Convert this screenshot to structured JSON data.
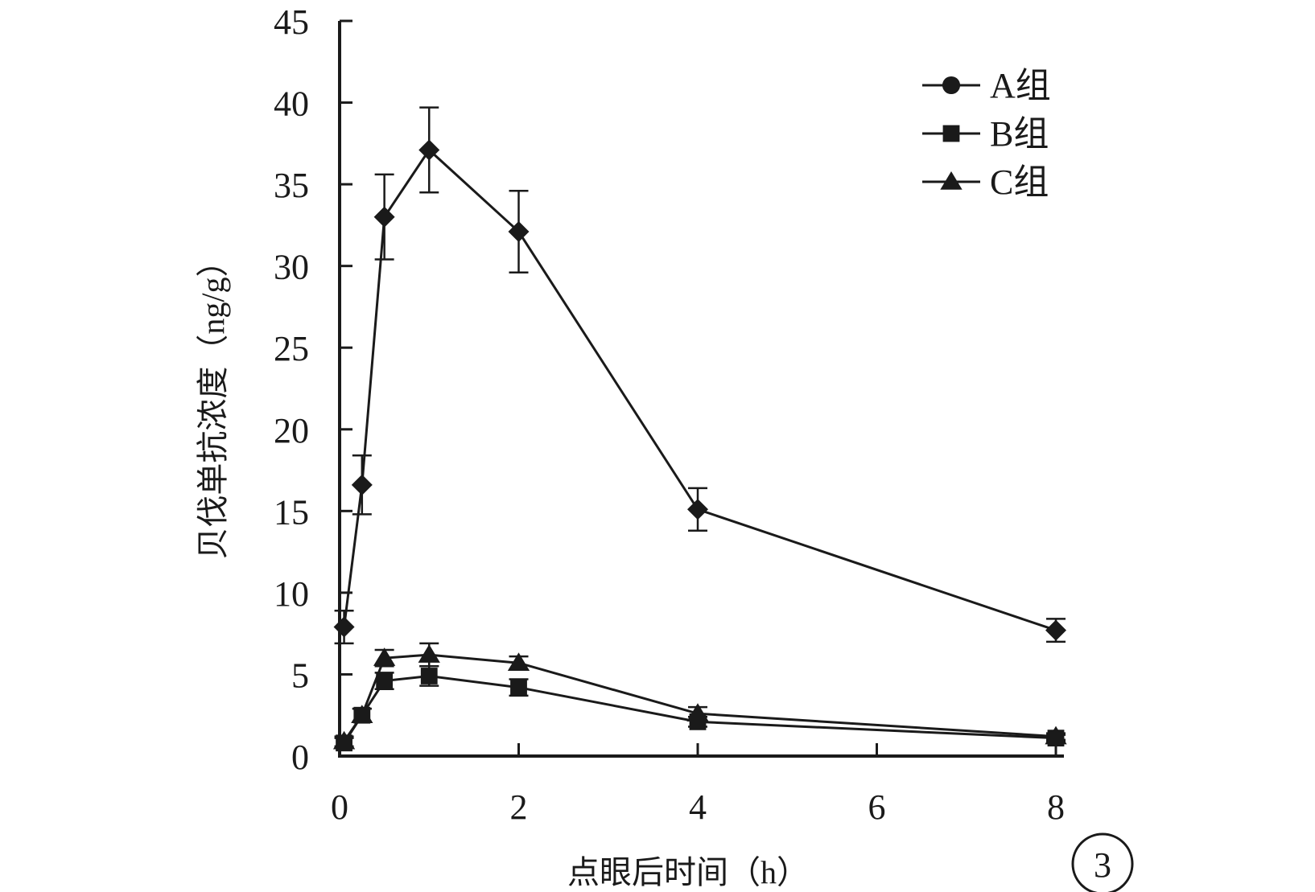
{
  "panel_label": "3",
  "chart_data": {
    "type": "line",
    "xlabel": "点眼后时间（h）",
    "ylabel": "贝伐单抗浓度（ng/g）",
    "x_ticks": [
      0,
      2,
      4,
      6,
      8
    ],
    "y_ticks": [
      0,
      5,
      10,
      15,
      20,
      25,
      30,
      35,
      40,
      45
    ],
    "xlim": [
      0,
      8
    ],
    "ylim": [
      0,
      45
    ],
    "grid": false,
    "legend_position": "top-right",
    "series": [
      {
        "name": "A组",
        "legend_marker": "circle",
        "marker": "diamond",
        "x": [
          0.05,
          0.25,
          0.5,
          1,
          2,
          4,
          8
        ],
        "y": [
          7.9,
          16.6,
          33.0,
          37.1,
          32.1,
          15.1,
          7.7
        ],
        "err": [
          1.0,
          1.8,
          2.6,
          2.6,
          2.5,
          1.3,
          0.7
        ]
      },
      {
        "name": "B组",
        "legend_marker": "square",
        "marker": "square",
        "x": [
          0.05,
          0.25,
          0.5,
          1,
          2,
          4,
          8
        ],
        "y": [
          0.8,
          2.5,
          4.6,
          4.9,
          4.2,
          2.1,
          1.1
        ],
        "err": [
          0.3,
          0.4,
          0.5,
          0.6,
          0.5,
          0.3,
          0.2
        ]
      },
      {
        "name": "C组",
        "legend_marker": "triangle",
        "marker": "triangle",
        "x": [
          0.05,
          0.25,
          0.5,
          1,
          2,
          4,
          8
        ],
        "y": [
          0.9,
          2.5,
          6.0,
          6.2,
          5.7,
          2.6,
          1.2
        ],
        "err": [
          0.3,
          0.4,
          0.5,
          0.7,
          0.4,
          0.4,
          0.2
        ]
      }
    ]
  }
}
